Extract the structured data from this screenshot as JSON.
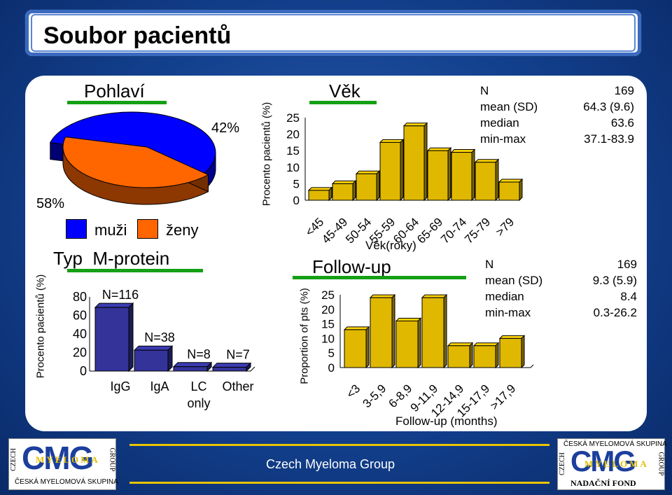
{
  "page_title": "Soubor pacientů",
  "footer_text": "Czech Myeloma Group",
  "logos": {
    "left": {
      "word": "CMG",
      "vert_left": "CZECH",
      "vert_right": "GROUP",
      "band": "MYELOMA",
      "bottom": "ČESKÁ MYELOMOVÁ SKUPINA"
    },
    "right": {
      "top": "ČESKÁ MYELOMOVÁ SKUPINA",
      "word": "CMG",
      "vert_left": "CZECH",
      "vert_right": "GROUP",
      "band": "MYELOMA",
      "bottom": "NADAČNÍ FOND"
    }
  },
  "chart_data": [
    {
      "type": "pie",
      "title": "Pohlaví",
      "categories": [
        "muži",
        "ženy"
      ],
      "values": [
        58,
        42
      ],
      "labels": [
        "58%",
        "42%"
      ],
      "colors": [
        "#0000ff",
        "#ff6600"
      ],
      "legend": "bottom"
    },
    {
      "type": "bar",
      "title": "Typ  M-protein",
      "ylabel": "Procento pacientů (%)",
      "categories": [
        "IgG",
        "IgA",
        "LC only",
        "Other"
      ],
      "category_lines": [
        [
          "IgG"
        ],
        [
          "IgA"
        ],
        [
          "LC",
          "only"
        ],
        [
          "Other"
        ]
      ],
      "values": [
        68.6,
        22.5,
        4.7,
        4.1
      ],
      "data_labels": [
        "N=116",
        "N=38",
        "N=8",
        "N=7"
      ],
      "ylim": [
        0,
        80
      ],
      "yticks": [
        "80",
        "60",
        "40",
        "20",
        "0"
      ],
      "color": "#333399"
    },
    {
      "type": "bar",
      "title": "Věk",
      "ylabel": "Procento pacientů (%)",
      "xlabel": "Věk(roky)",
      "categories": [
        "<45",
        "45-49",
        "50-54",
        "55-59",
        "60-64",
        "65-69",
        "70-74",
        "75-79",
        ">79"
      ],
      "values": [
        3,
        5,
        8,
        17.5,
        22.5,
        15,
        14.5,
        11.5,
        5.5
      ],
      "ylim": [
        0,
        25
      ],
      "yticks": [
        "25",
        "20",
        "15",
        "10",
        "5",
        "0"
      ],
      "color": "#e0b800"
    },
    {
      "type": "bar",
      "title": "Follow-up",
      "ylabel": "Proportion of pts (%)",
      "xlabel": "Follow-up (months)",
      "categories": [
        "<3",
        "3-5,9",
        "6-8,9",
        "9-11,9",
        "12-14,9",
        "15-17,9",
        ">17,9"
      ],
      "values": [
        13,
        24,
        16,
        24,
        7.5,
        7.5,
        10
      ],
      "ylim": [
        0,
        25
      ],
      "yticks": [
        "25",
        "20",
        "15",
        "10",
        "5",
        "0"
      ],
      "color": "#e0b800"
    }
  ],
  "stats": {
    "age": {
      "rows": [
        [
          "N",
          "169"
        ],
        [
          "mean (SD)",
          "64.3 (9.6)"
        ],
        [
          "median",
          "63.6"
        ],
        [
          "min-max",
          "37.1-83.9"
        ]
      ]
    },
    "followup": {
      "rows": [
        [
          "N",
          "169"
        ],
        [
          "mean (SD)",
          "9.3 (5.9)"
        ],
        [
          "median",
          "8.4"
        ],
        [
          "min-max",
          "0.3-26.2"
        ]
      ]
    }
  }
}
